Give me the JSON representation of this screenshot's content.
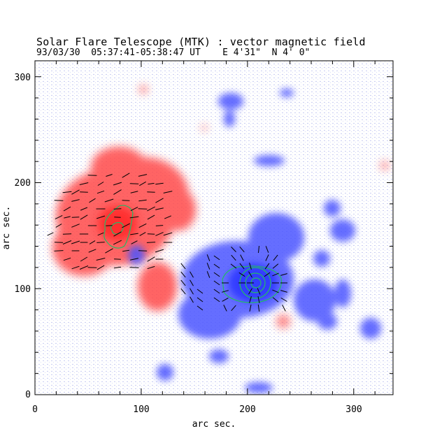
{
  "header": {
    "title": "Solar Flare Telescope (MTK) : vector magnetic field",
    "date": "93/03/30",
    "time_range": "05:37:41-05:38:47 UT",
    "position": "E 4'31\"  N 4' 0\""
  },
  "axes": {
    "x_label": "arc sec.",
    "y_label": "arc sec.",
    "x_range": [
      0,
      337
    ],
    "y_range": [
      0,
      315
    ],
    "x_ticks": [
      "0",
      "100",
      "200",
      "300"
    ],
    "y_ticks": [
      "0",
      "100",
      "200",
      "300"
    ]
  },
  "colors": {
    "positive_polarity": "#ff3b3b",
    "negative_polarity": "#3b4bff",
    "contour": "#22bb66",
    "vectors": "#000000",
    "frame": "#000000"
  }
}
